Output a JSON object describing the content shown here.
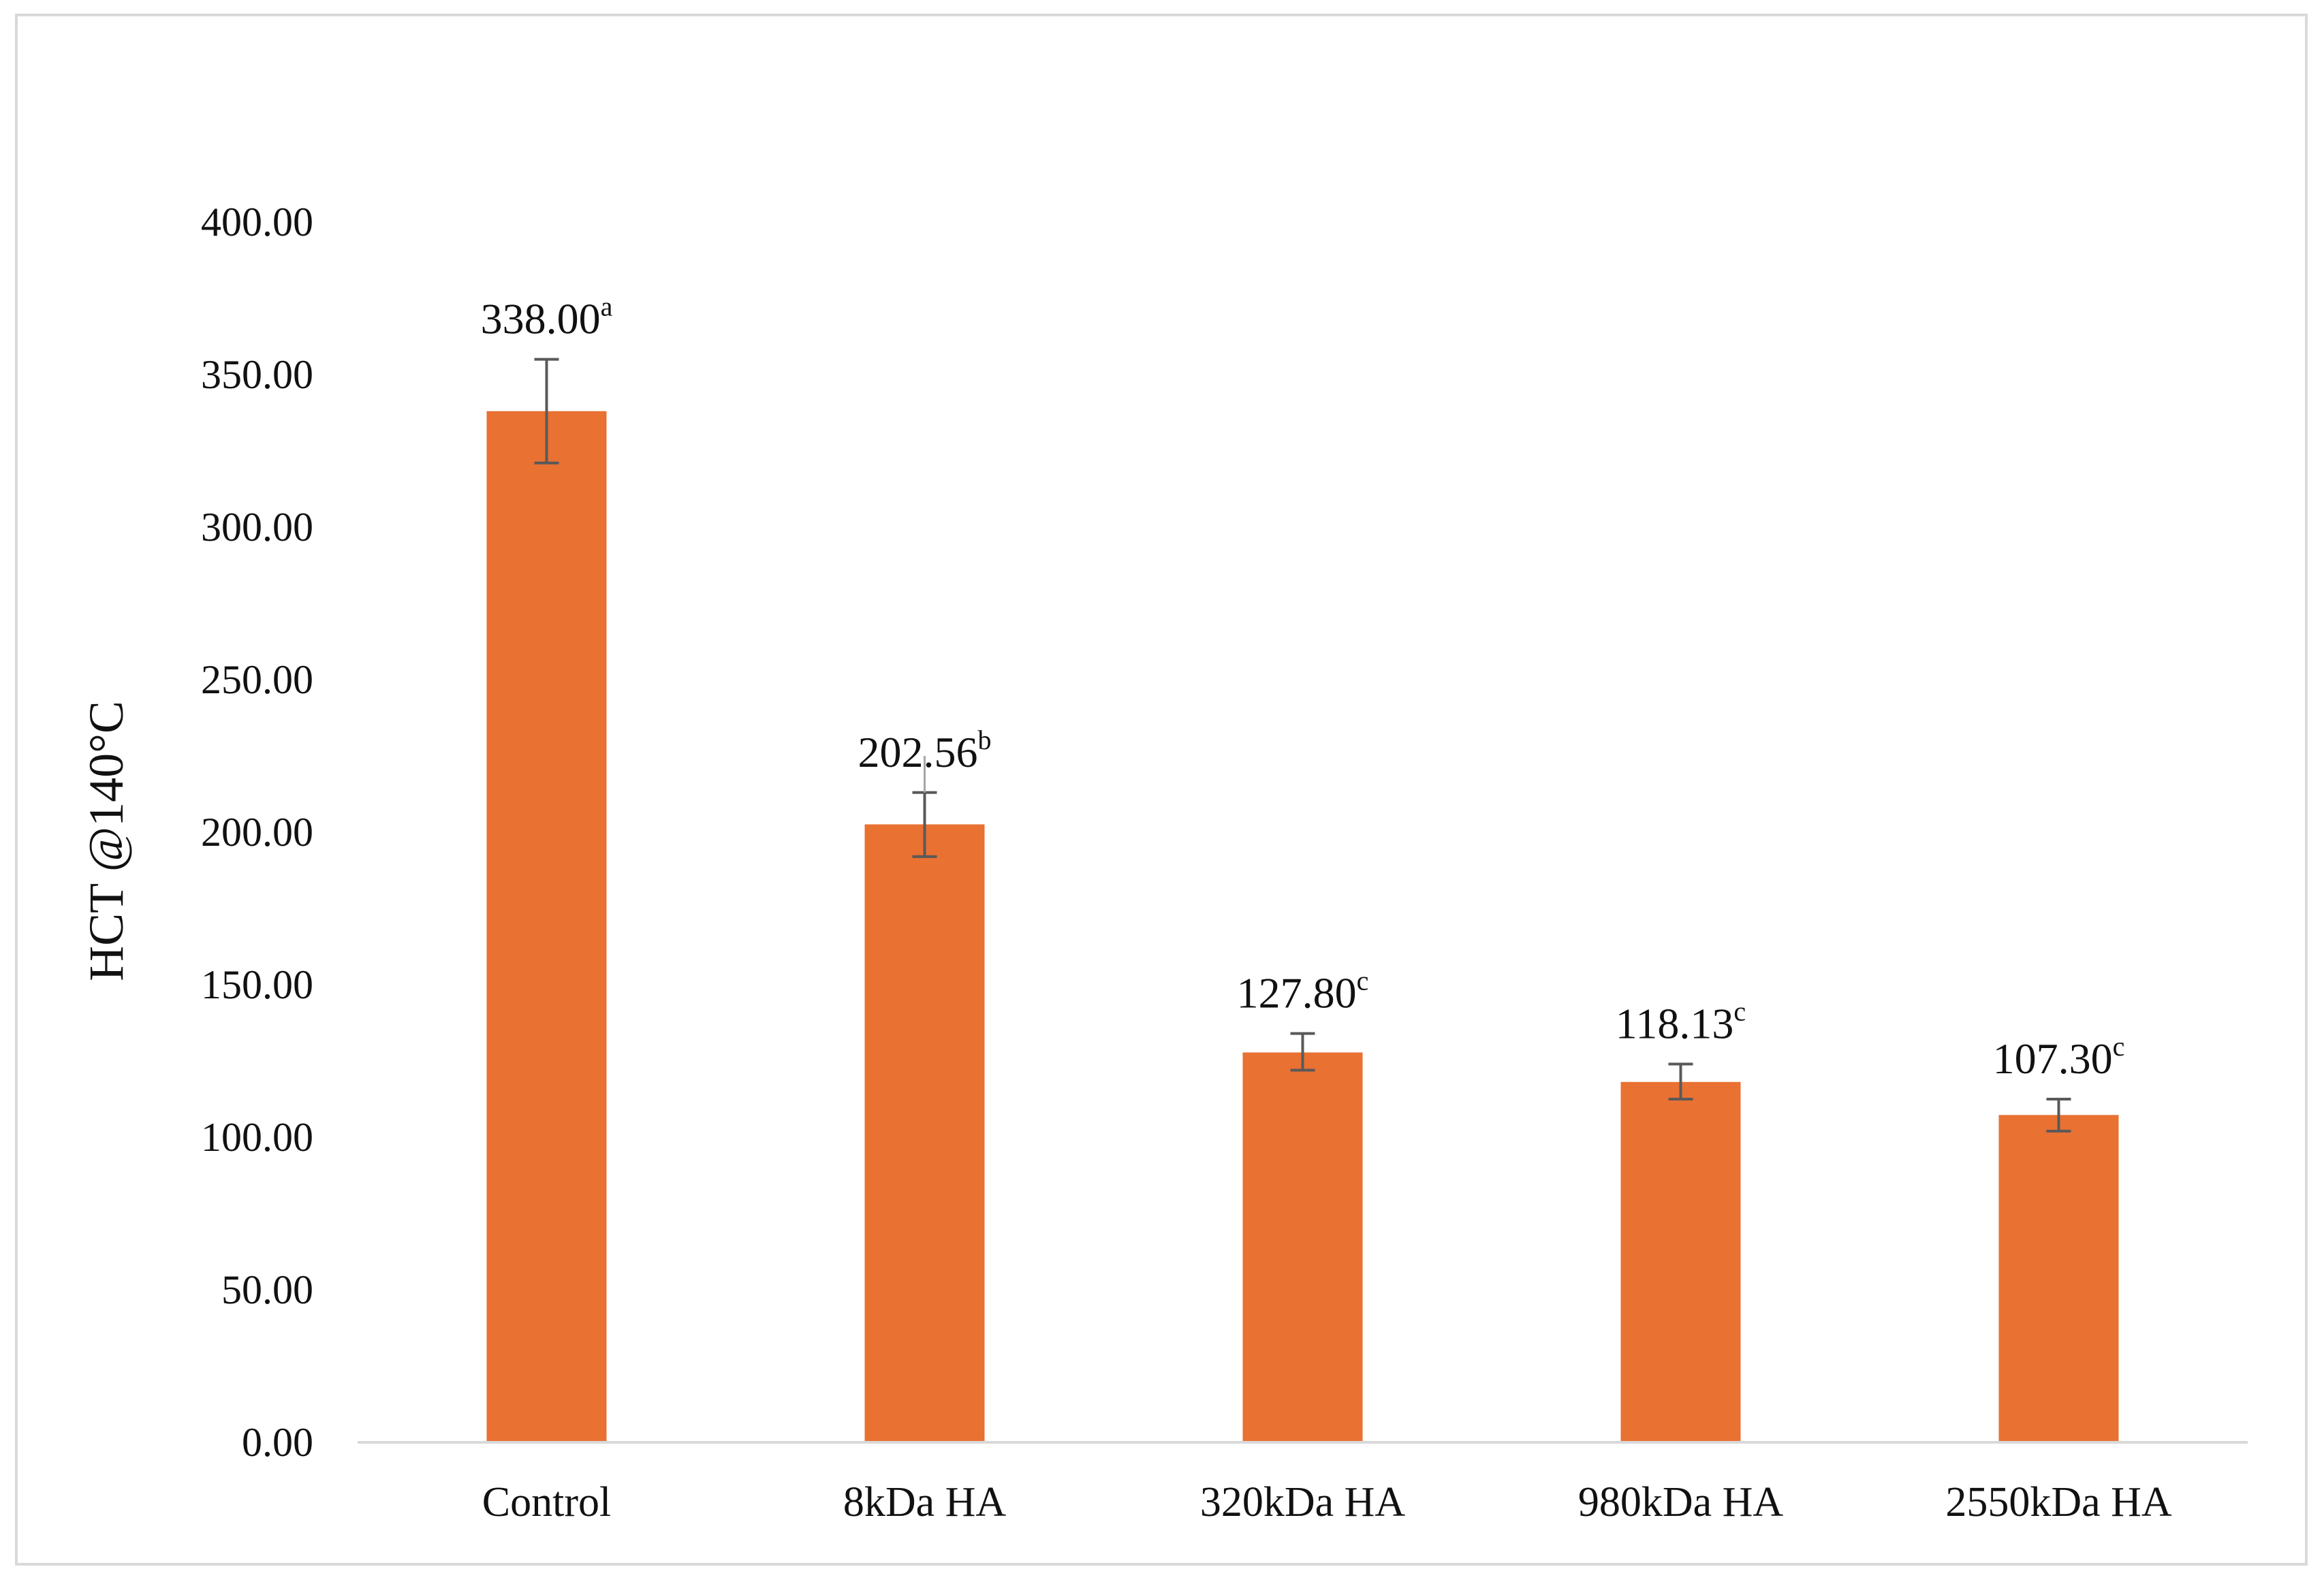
{
  "chart_data": {
    "type": "bar",
    "title": "",
    "xlabel": "",
    "ylabel": "HCT @140°C",
    "ylim": [
      0,
      400
    ],
    "ytick_step": 50,
    "ytick_labels": [
      "0.00",
      "50.00",
      "100.00",
      "150.00",
      "200.00",
      "250.00",
      "300.00",
      "350.00",
      "400.00"
    ],
    "grid": false,
    "legend": "none",
    "bar_color": "#E97132",
    "error_bar_color": "#595959",
    "categories": [
      "Control",
      "8kDa HA",
      "320kDa HA",
      "980kDa HA",
      "2550kDa HA"
    ],
    "values": [
      338.0,
      202.56,
      127.8,
      118.13,
      107.3
    ],
    "value_labels": [
      "338.00",
      "202.56",
      "127.80",
      "118.13",
      "107.30"
    ],
    "significance_letters": [
      "a",
      "b",
      "c",
      "c",
      "c"
    ],
    "error_bars": [
      {
        "lower": 321.0,
        "upper": 355.0
      },
      {
        "lower": 192.0,
        "upper": 213.0
      },
      {
        "lower": 122.0,
        "upper": 134.0
      },
      {
        "lower": 112.5,
        "upper": 124.0
      },
      {
        "lower": 102.0,
        "upper": 112.5
      }
    ],
    "secondary_error_upper": 225.0
  }
}
